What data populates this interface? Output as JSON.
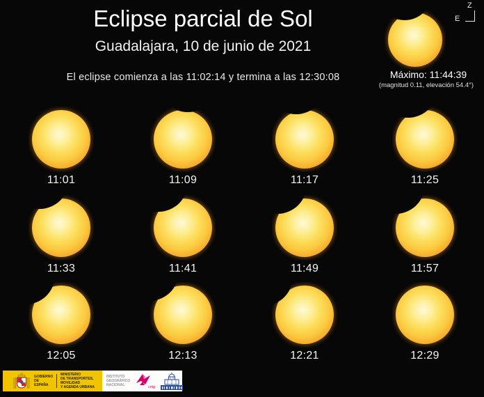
{
  "header": {
    "title": "Eclipse parcial de Sol",
    "subtitle": "Guadalajara, 10 de junio de 2021",
    "schedule": "El eclipse comienza a las 11:02:14 y termina a las 12:30:08"
  },
  "compass": {
    "zenith": "Z",
    "east": "E"
  },
  "maximum": {
    "label": "Máximo: 11:44:39",
    "detail": "(magnitud 0.11, elevación 54.4°)",
    "bite": {
      "angle_deg": 103,
      "depth": 0.12
    }
  },
  "grid": {
    "frames": [
      {
        "time": "11:01",
        "bite": null
      },
      {
        "time": "11:09",
        "bite": {
          "angle_deg": 85,
          "depth": 0.035
        }
      },
      {
        "time": "11:17",
        "bite": {
          "angle_deg": 99,
          "depth": 0.06
        }
      },
      {
        "time": "11:25",
        "bite": {
          "angle_deg": 108,
          "depth": 0.09
        }
      },
      {
        "time": "11:33",
        "bite": {
          "angle_deg": 114,
          "depth": 0.105
        }
      },
      {
        "time": "11:41",
        "bite": {
          "angle_deg": 118,
          "depth": 0.12
        }
      },
      {
        "time": "11:49",
        "bite": {
          "angle_deg": 122,
          "depth": 0.125
        }
      },
      {
        "time": "11:57",
        "bite": {
          "angle_deg": 124,
          "depth": 0.115
        }
      },
      {
        "time": "12:05",
        "bite": {
          "angle_deg": 132,
          "depth": 0.09
        }
      },
      {
        "time": "12:13",
        "bite": {
          "angle_deg": 128,
          "depth": 0.065
        }
      },
      {
        "time": "12:21",
        "bite": {
          "angle_deg": 137,
          "depth": 0.045
        }
      },
      {
        "time": "12:29",
        "bite": null
      }
    ]
  },
  "footer": {
    "government": {
      "name_lines": [
        "GOBIERNO",
        "DE ESPAÑA"
      ],
      "ministry_lines": [
        "MINISTERIO",
        "DE TRANSPORTES, MOVILIDAD",
        "Y AGENDA URBANA"
      ]
    },
    "ign": {
      "institute_lines": [
        "INSTITUTO",
        "GEOGRÁFICO",
        "NACIONAL"
      ],
      "cnig_label": "cnig"
    }
  },
  "colors": {
    "background": "#070707",
    "sun_core": "#fef9d8",
    "sun_mid": "#fcd648",
    "sun_edge": "#e8820f",
    "government_yellow": "#f1c400",
    "ign_magenta": "#d6006d",
    "observatory_blue": "#2b4ea0",
    "text": "#ffffff"
  }
}
